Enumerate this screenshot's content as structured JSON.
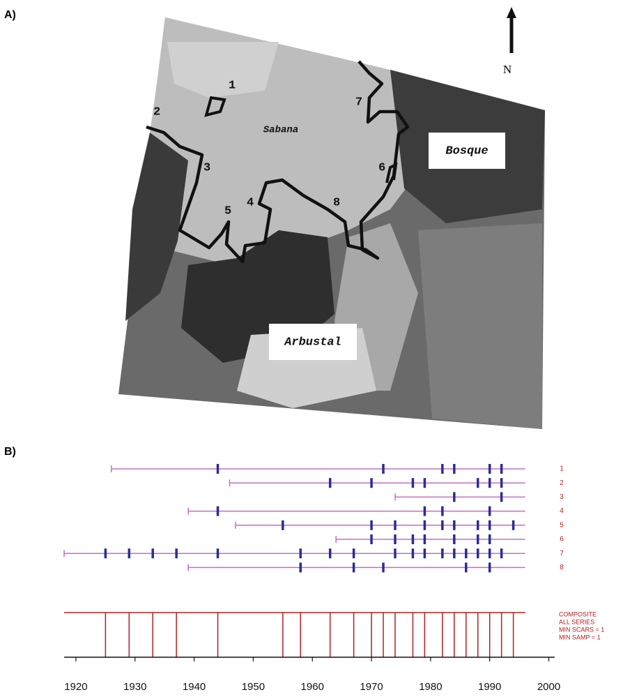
{
  "map": {
    "panel_label": "A)",
    "north": "N",
    "zones": [
      "Sabana",
      "Bosque",
      "Arbustal"
    ],
    "sites": [
      "1",
      "2",
      "3",
      "4",
      "5",
      "6",
      "7",
      "8"
    ]
  },
  "chart_data": {
    "type": "fire-history",
    "panel_label": "B)",
    "xlim": [
      1918,
      2001
    ],
    "xticks": [
      1920,
      1930,
      1940,
      1950,
      1960,
      1970,
      1980,
      1990,
      2000
    ],
    "line_color": "#c070c0",
    "scar_color": "#2b2b9a",
    "composite_color": "#b02020",
    "series": [
      {
        "name": "1",
        "start": 1926,
        "end": 1996,
        "fires": [
          1944,
          1972,
          1982,
          1984,
          1990,
          1992
        ]
      },
      {
        "name": "2",
        "start": 1946,
        "end": 1996,
        "fires": [
          1963,
          1970,
          1977,
          1979,
          1988,
          1990,
          1992
        ]
      },
      {
        "name": "3",
        "start": 1974,
        "end": 1996,
        "fires": [
          1984,
          1992
        ]
      },
      {
        "name": "4",
        "start": 1939,
        "end": 1996,
        "fires": [
          1944,
          1979,
          1982,
          1990
        ]
      },
      {
        "name": "5",
        "start": 1947,
        "end": 1996,
        "fires": [
          1955,
          1970,
          1974,
          1979,
          1982,
          1984,
          1988,
          1990,
          1994
        ]
      },
      {
        "name": "6",
        "start": 1964,
        "end": 1996,
        "fires": [
          1970,
          1974,
          1977,
          1979,
          1984,
          1988,
          1990
        ]
      },
      {
        "name": "7",
        "start": 1918,
        "end": 1996,
        "fires": [
          1925,
          1929,
          1933,
          1937,
          1944,
          1958,
          1963,
          1967,
          1974,
          1977,
          1979,
          1982,
          1984,
          1986,
          1988,
          1990,
          1992
        ]
      },
      {
        "name": "8",
        "start": 1939,
        "end": 1996,
        "fires": [
          1958,
          1967,
          1972,
          1986,
          1990
        ]
      }
    ],
    "composite": {
      "labels": [
        "COMPOSITE",
        "ALL SERIES",
        "MIN SCARS = 1",
        "MIN SAMP = 1"
      ],
      "years": [
        1925,
        1929,
        1933,
        1937,
        1944,
        1955,
        1958,
        1963,
        1967,
        1970,
        1972,
        1974,
        1977,
        1979,
        1982,
        1984,
        1986,
        1988,
        1990,
        1992,
        1994
      ]
    }
  }
}
